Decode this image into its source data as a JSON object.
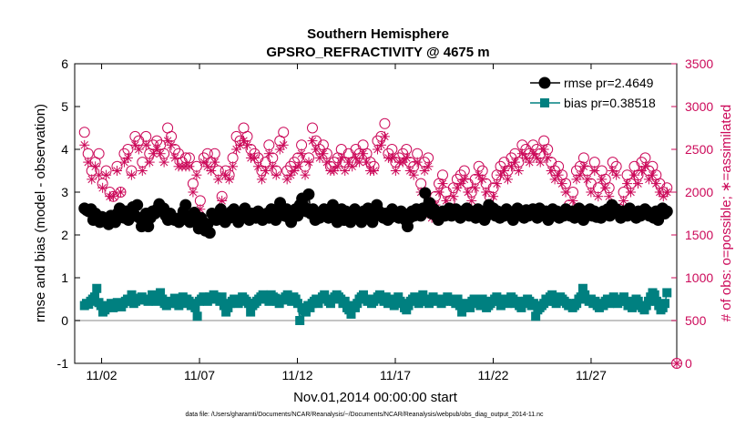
{
  "chart_data": {
    "type": "line",
    "title": "Southern Hemisphere",
    "subtitle": "GPSRO_REFRACTIVITY @ 4675 m",
    "xlabel": "Nov.01,2014 00:00:00 start",
    "ylabel_left": "rmse and bias (model - observation)",
    "ylabel_right": "# of obs: o=possible; ∗=assimilated",
    "footnote": "data file: /Users/gharamti/Documents/NCAR/Reanalysis/~/Documents/NCAR/Reanalysis/webpub/obs_diag_output_2014-11.nc",
    "x_tick_labels": [
      "11/02",
      "11/07",
      "11/12",
      "11/17",
      "11/22",
      "11/27"
    ],
    "x_tick_days": [
      2,
      7,
      12,
      17,
      22,
      27
    ],
    "xlim": [
      0.625,
      31.375
    ],
    "ylim_left": [
      -1,
      6
    ],
    "yticks_left": [
      -1,
      0,
      1,
      2,
      3,
      4,
      5,
      6
    ],
    "ylim_right": [
      0,
      3500
    ],
    "yticks_right": [
      0,
      500,
      1000,
      1500,
      2000,
      2500,
      3000,
      3500
    ],
    "grid": false,
    "legend_position": "top-right",
    "colors": {
      "rmse": "#000000",
      "bias": "#008080",
      "obs": "#cc0a5a",
      "zero_line": "#b0b0b0"
    },
    "series": [
      {
        "name": "rmse pr=2.4649",
        "axis": "left",
        "marker": "circle",
        "color": "#000000",
        "values": [
          2.62,
          2.58,
          2.55,
          2.6,
          2.35,
          2.5,
          2.4,
          2.3,
          2.42,
          2.38,
          2.3,
          2.25,
          2.45,
          2.35,
          2.3,
          2.5,
          2.62,
          2.45,
          2.4,
          2.55,
          2.35,
          2.5,
          2.65,
          2.45,
          2.7,
          2.4,
          2.2,
          2.3,
          2.5,
          2.2,
          2.4,
          2.55,
          2.5,
          2.6,
          2.72,
          2.55,
          2.62,
          2.45,
          2.35,
          2.5,
          2.4,
          2.35,
          2.38,
          2.3,
          2.35,
          2.55,
          2.7,
          2.45,
          2.3,
          2.45,
          2.52,
          2.3,
          2.15,
          2.4,
          2.3,
          2.1,
          2.25,
          2.05,
          2.5,
          2.45,
          2.35,
          2.4,
          2.6,
          2.5,
          2.3,
          2.45,
          2.4,
          2.55,
          2.6,
          2.45,
          2.3,
          2.5,
          2.4,
          2.62,
          2.5,
          2.35,
          2.5,
          2.45,
          2.4,
          2.55,
          2.5,
          2.35,
          2.45,
          2.5,
          2.4,
          2.6,
          2.45,
          2.35,
          2.55,
          2.75,
          2.5,
          2.45,
          2.6,
          2.4,
          2.3,
          2.5,
          2.6,
          2.45,
          2.7,
          2.85,
          2.65,
          2.55,
          2.95,
          2.5,
          2.6,
          2.35,
          2.5,
          2.4,
          2.45,
          2.6,
          2.5,
          2.4,
          2.55,
          2.7,
          2.5,
          2.3,
          2.45,
          2.6,
          2.35,
          2.55,
          2.45,
          2.3,
          2.5,
          2.6,
          2.45,
          2.4,
          2.3,
          2.55,
          2.45,
          2.62,
          2.5,
          2.3,
          2.45,
          2.7,
          2.55,
          2.45,
          2.4,
          2.5,
          2.35,
          2.4,
          2.6,
          2.5,
          2.45,
          2.4,
          2.55,
          2.5,
          2.35,
          2.2,
          2.4,
          2.55,
          2.45,
          2.6,
          2.5,
          2.45,
          2.62,
          2.98,
          2.55,
          2.75,
          2.5,
          2.6,
          2.45,
          2.35,
          2.5,
          2.55,
          2.45,
          2.5,
          2.62,
          2.45,
          2.55,
          2.6,
          2.5,
          2.4,
          2.55,
          2.5,
          2.62,
          2.45,
          2.55,
          2.5,
          2.4,
          2.6,
          2.45,
          2.55,
          2.35,
          2.45,
          2.7,
          2.55,
          2.62,
          2.45,
          2.55,
          2.4,
          2.5,
          2.45,
          2.6,
          2.55,
          2.45,
          2.35,
          2.5,
          2.62,
          2.55,
          2.45,
          2.4,
          2.58,
          2.45,
          2.5,
          2.6,
          2.55,
          2.4,
          2.62,
          2.5,
          2.45,
          2.55,
          2.35,
          2.5,
          2.6,
          2.45,
          2.55,
          2.4,
          2.5,
          2.45,
          2.6,
          2.5,
          2.45,
          2.55,
          2.4,
          2.5,
          2.62,
          2.45,
          2.35,
          2.55,
          2.5,
          2.6,
          2.45,
          2.55,
          2.42,
          2.5,
          2.4,
          2.55,
          2.5,
          2.6,
          2.45,
          2.7,
          2.55,
          2.6,
          2.5,
          2.4,
          2.55,
          2.5,
          2.45,
          2.62,
          2.55,
          2.5,
          2.4,
          2.55,
          2.45,
          2.5,
          2.6,
          2.55,
          2.45,
          2.5,
          2.4,
          2.55,
          2.35,
          2.5,
          2.62,
          2.5,
          2.55
        ]
      },
      {
        "name": "bias pr=0.38518",
        "axis": "left",
        "marker": "square",
        "color": "#008080",
        "values": [
          0.35,
          0.4,
          0.38,
          0.45,
          0.5,
          0.55,
          0.75,
          0.42,
          0.35,
          0.2,
          0.25,
          0.3,
          0.35,
          0.4,
          0.3,
          0.38,
          0.42,
          0.35,
          0.32,
          0.4,
          0.45,
          0.5,
          0.45,
          0.6,
          0.4,
          0.45,
          0.5,
          0.52,
          0.55,
          0.48,
          0.5,
          0.45,
          0.5,
          0.6,
          0.52,
          0.45,
          0.55,
          0.65,
          0.5,
          0.4,
          0.35,
          0.42,
          0.45,
          0.4,
          0.52,
          0.4,
          0.35,
          0.45,
          0.55,
          0.4,
          0.5,
          0.45,
          0.35,
          0.4,
          0.3,
          0.1,
          0.45,
          0.5,
          0.55,
          0.5,
          0.45,
          0.55,
          0.5,
          0.6,
          0.55,
          0.5,
          0.45,
          0.55,
          0.35,
          0.2,
          0.3,
          0.4,
          0.45,
          0.5,
          0.45,
          0.4,
          0.5,
          0.55,
          0.5,
          0.45,
          0.4,
          0.2,
          0.35,
          0.4,
          0.45,
          0.5,
          0.55,
          0.6,
          0.55,
          0.5,
          0.45,
          0.6,
          0.55,
          0.52,
          0.45,
          0.4,
          0.5,
          0.48,
          0.55,
          0.6,
          0.5,
          0.45,
          0.55,
          0.5,
          0.4,
          0.0,
          0.3,
          0.25,
          0.2,
          0.35,
          0.3,
          0.4,
          0.45,
          0.5,
          0.4,
          0.5,
          0.55,
          0.6,
          0.5,
          0.45,
          0.4,
          0.5,
          0.55,
          0.6,
          0.55,
          0.5,
          0.4,
          0.45,
          0.3,
          0.25,
          0.15,
          0.35,
          0.3,
          0.4,
          0.5,
          0.55,
          0.6,
          0.5,
          0.45,
          0.5,
          0.4,
          0.45,
          0.5,
          0.55,
          0.6,
          0.5,
          0.45,
          0.55,
          0.4,
          0.5,
          0.45,
          0.35,
          0.5,
          0.55,
          0.45,
          0.4,
          0.3,
          0.25,
          0.35,
          0.45,
          0.5,
          0.55,
          0.5,
          0.4,
          0.45,
          0.6,
          0.5,
          0.45,
          0.4,
          0.5,
          0.55,
          0.5,
          0.45,
          0.5,
          0.4,
          0.45,
          0.5,
          0.55,
          0.5,
          0.45,
          0.45,
          0.4,
          0.5,
          0.35,
          0.2,
          0.3,
          0.4,
          0.35,
          0.3,
          0.45,
          0.5,
          0.45,
          0.4,
          0.35,
          0.5,
          0.45,
          0.3,
          0.35,
          0.4,
          0.45,
          0.5,
          0.55,
          0.45,
          0.35,
          0.45,
          0.5,
          0.4,
          0.45,
          0.55,
          0.5,
          0.4,
          0.45,
          0.35,
          0.3,
          0.4,
          0.45,
          0.5,
          0.45,
          0.35,
          0.4,
          0.1,
          0.25,
          0.3,
          0.35,
          0.4,
          0.5,
          0.45,
          0.55,
          0.6,
          0.45,
          0.4,
          0.5,
          0.55,
          0.5,
          0.45,
          0.4,
          0.35,
          0.4,
          0.3,
          0.35,
          0.4,
          0.5,
          0.55,
          0.75,
          0.6,
          0.5,
          0.45,
          0.5,
          0.4,
          0.45,
          0.35,
          0.3,
          0.4,
          0.35,
          0.45,
          0.5,
          0.4,
          0.45,
          0.55,
          0.5,
          0.4,
          0.45,
          0.5,
          0.55,
          0.45,
          0.35,
          0.4,
          0.3,
          0.45,
          0.5,
          0.45,
          0.35,
          0.3,
          0.25,
          0.35,
          0.45,
          0.55,
          0.65,
          0.6,
          0.45,
          0.35,
          0.25,
          0.3,
          0.4,
          0.65
        ]
      },
      {
        "name": "possible obs",
        "axis": "right",
        "marker": "open-circle",
        "color": "#cc0a5a",
        "values": [
          2700,
          2450,
          2250,
          2350,
          2450,
          2100,
          2250,
          2000,
          1950,
          2300,
          2000,
          2450,
          2500,
          2250,
          2650,
          2600,
          2350,
          2650,
          2450,
          2550,
          2600,
          2550,
          2450,
          2750,
          2650,
          2500,
          2450,
          2350,
          2400,
          2400,
          2100,
          2300,
          1900,
          2400,
          2450,
          2350,
          2450,
          2250,
          1950,
          2250,
          2200,
          2400,
          2650,
          2600,
          2750,
          2650,
          2500,
          2450,
          2400,
          2250,
          2350,
          2550,
          2400,
          2250,
          2600,
          2700,
          2250,
          2300,
          2350,
          2400,
          2550,
          2300,
          2400,
          2750,
          2600,
          2500,
          2550,
          2450,
          2300,
          2350,
          2400,
          2500,
          2350,
          2450,
          2350,
          2500,
          2450,
          2550,
          2450,
          2350,
          2300,
          2600,
          2650,
          2800,
          2450,
          2500,
          2350,
          2400,
          2450,
          2500,
          2350,
          2300,
          2450,
          2100,
          2350,
          2400,
          1850,
          1950,
          2100,
          2200,
          2000,
          1900,
          2050,
          2150,
          2200,
          2250,
          2100,
          2000,
          2150,
          2300,
          2250,
          2100,
          1950,
          2050,
          2200,
          2300,
          2350,
          2250,
          2400,
          2450,
          2350,
          2550,
          2500,
          2450,
          2550,
          2500,
          2450,
          2600,
          2500,
          2350,
          2250,
          2300,
          2200,
          2100,
          1850,
          2000,
          2250,
          2300,
          2400,
          2250,
          2100,
          2350,
          2050,
          2250,
          2150,
          2050,
          2350,
          2300,
          1800,
          2000,
          2200,
          2100,
          2300,
          2200,
          2350,
          2400,
          2250,
          2300,
          2200,
          2100,
          2000,
          2050
        ]
      },
      {
        "name": "assimilated obs",
        "axis": "right",
        "marker": "asterisk",
        "color": "#cc0a5a",
        "values": [
          2550,
          2350,
          2150,
          2300,
          2200,
          2050,
          2200,
          1950,
          1950,
          2250,
          2000,
          2350,
          2400,
          2200,
          2550,
          2500,
          2250,
          2550,
          2350,
          2450,
          2500,
          2450,
          2350,
          2600,
          2550,
          2400,
          2300,
          2300,
          2300,
          2300,
          2000,
          2200,
          1800,
          2350,
          2300,
          2250,
          2350,
          2150,
          1900,
          2200,
          2150,
          2300,
          2500,
          2550,
          2600,
          2550,
          2400,
          2400,
          2300,
          2150,
          2250,
          2450,
          2300,
          2200,
          2500,
          2550,
          2150,
          2200,
          2250,
          2300,
          2450,
          2200,
          2350,
          2600,
          2500,
          2400,
          2450,
          2350,
          2250,
          2250,
          2300,
          2400,
          2250,
          2350,
          2300,
          2400,
          2350,
          2450,
          2350,
          2250,
          2250,
          2500,
          2550,
          2650,
          2400,
          2400,
          2250,
          2350,
          2350,
          2400,
          2250,
          2200,
          2350,
          2000,
          2250,
          2300,
          1700,
          1850,
          2000,
          2100,
          1900,
          1800,
          1950,
          2050,
          2100,
          2150,
          2000,
          1900,
          2050,
          2200,
          2150,
          2000,
          1850,
          1950,
          2100,
          2200,
          2250,
          2150,
          2300,
          2350,
          2250,
          2450,
          2400,
          2350,
          2450,
          2400,
          2350,
          2500,
          2400,
          2250,
          2150,
          2200,
          2100,
          2000,
          1750,
          1900,
          2150,
          2200,
          2300,
          2150,
          2000,
          2250,
          1950,
          2150,
          2050,
          1950,
          2250,
          2200,
          1750,
          1900,
          2100,
          2000,
          2200,
          2100,
          2250,
          2300,
          2150,
          2200,
          2100,
          2000,
          1950,
          2000
        ]
      }
    ]
  }
}
